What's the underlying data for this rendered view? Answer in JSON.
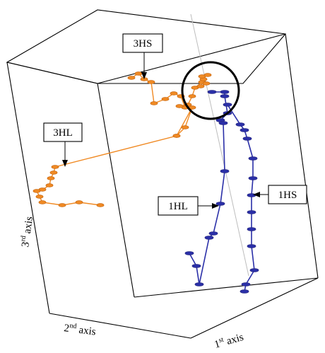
{
  "colors": {
    "orange": "#f08a24",
    "orange_marker": "#c96a14",
    "blue": "#2a2fa8",
    "blue_marker": "#2a2c86",
    "gray_line": "#bdbdbd"
  },
  "labels": {
    "hs3": "3HS",
    "hl3": "3HL",
    "hl1": "1HL",
    "hs1": "1HS"
  },
  "axes": {
    "first_base": "1",
    "first_sup": "st",
    "first_word": " axis",
    "second_base": "2",
    "second_sup": "nd",
    "second_word": " axis",
    "third_base": "3",
    "third_sup": "rd",
    "third_word": " axis"
  }
}
